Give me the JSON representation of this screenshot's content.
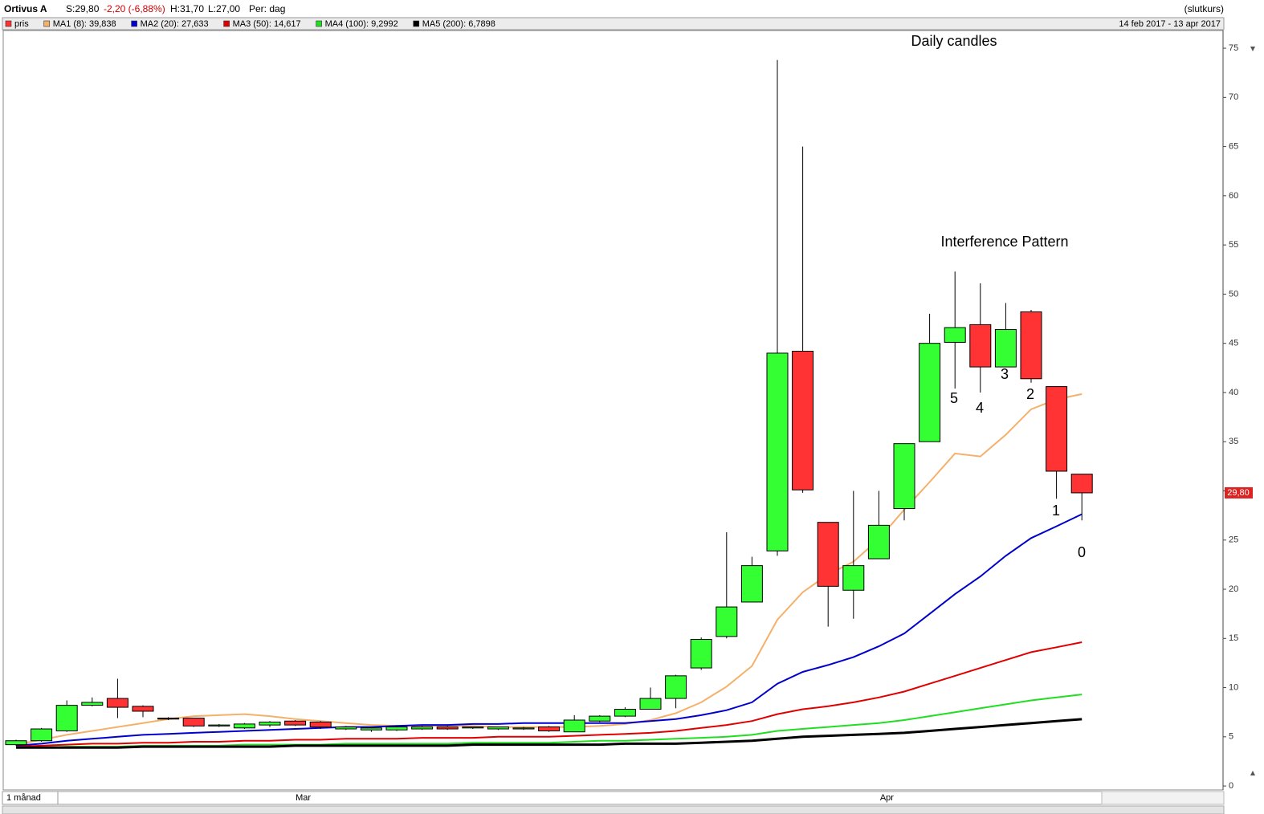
{
  "header": {
    "name": "Ortivus A",
    "close": "S:29,80",
    "change": "-2,20 (-6,88%)",
    "high": "H:31,70",
    "low": "L:27,00",
    "period": "Per: dag",
    "mode": "(slutkurs)",
    "date_range": "14 feb 2017 - 13 apr 2017",
    "range_button": "1 månad"
  },
  "chart_data": {
    "type": "candlestick",
    "annotations": [
      "Daily candles",
      "Interference Pattern"
    ],
    "wave_labels": [
      "5",
      "4",
      "3",
      "2",
      "1",
      "0"
    ],
    "categories": [
      null,
      null,
      null,
      null,
      null,
      null,
      null,
      null,
      null,
      null,
      null,
      "Mar",
      null,
      null,
      null,
      null,
      null,
      null,
      null,
      null,
      null,
      null,
      null,
      null,
      null,
      null,
      null,
      null,
      null,
      null,
      null,
      null,
      null,
      null,
      "Apr",
      null,
      null,
      null,
      null,
      null,
      null,
      null,
      null
    ],
    "ylim": [
      -0.4,
      76.8
    ],
    "yticks": [
      0,
      5,
      10,
      15,
      20,
      25,
      30,
      35,
      40,
      45,
      50,
      55,
      60,
      65,
      70,
      75
    ],
    "price_tag": {
      "value": 29.8,
      "label": "29,80"
    },
    "series": [
      {
        "name": "pris",
        "color": "#ff3333",
        "color_up": "#33ff33",
        "color_down": "#ff3333",
        "open": [
          4.2,
          4.6,
          5.6,
          8.2,
          8.9,
          8.1,
          6.9,
          6.9,
          6.1,
          5.9,
          6.2,
          6.6,
          6.5,
          5.8,
          5.7,
          5.7,
          5.8,
          6.0,
          5.9,
          5.8,
          5.8,
          6.0,
          5.5,
          6.6,
          7.1,
          7.8,
          8.9,
          12.0,
          15.2,
          18.7,
          23.9,
          44.2,
          26.8,
          19.9,
          23.1,
          28.2,
          35.0,
          45.1,
          46.9,
          42.6,
          48.2,
          40.6,
          31.7
        ],
        "high": [
          4.7,
          5.9,
          8.7,
          9.0,
          10.9,
          8.2,
          7.0,
          6.9,
          6.3,
          6.4,
          6.6,
          6.7,
          6.6,
          6.1,
          6.0,
          6.1,
          6.1,
          6.1,
          6.0,
          6.0,
          6.0,
          6.1,
          7.2,
          7.2,
          8.0,
          10.0,
          11.3,
          15.1,
          25.8,
          23.3,
          73.8,
          65.0,
          26.8,
          30.0,
          30.0,
          34.8,
          48.0,
          52.3,
          51.1,
          49.1,
          48.4,
          40.6,
          31.7
        ],
        "low": [
          4.1,
          4.5,
          5.5,
          8.1,
          6.9,
          7.0,
          6.7,
          6.0,
          6.0,
          5.8,
          6.0,
          6.1,
          5.8,
          5.7,
          5.5,
          5.6,
          5.7,
          5.7,
          5.8,
          5.7,
          5.7,
          5.5,
          5.5,
          6.5,
          7.0,
          7.8,
          7.9,
          11.8,
          15.0,
          18.7,
          23.4,
          29.8,
          16.2,
          17.0,
          23.1,
          27.0,
          35.0,
          40.4,
          40.0,
          42.6,
          41.0,
          29.2,
          27.0
        ],
        "close": [
          4.6,
          5.8,
          8.2,
          8.5,
          8.0,
          7.6,
          6.8,
          6.1,
          6.2,
          6.3,
          6.5,
          6.2,
          6.0,
          6.0,
          5.9,
          6.0,
          6.0,
          5.8,
          6.0,
          6.0,
          5.9,
          5.6,
          6.7,
          7.1,
          7.8,
          8.9,
          11.2,
          14.9,
          18.2,
          22.4,
          44.0,
          30.1,
          20.3,
          22.4,
          26.5,
          34.8,
          45.0,
          46.6,
          42.6,
          46.4,
          41.4,
          32.0,
          29.8
        ]
      },
      {
        "name": "MA1 (8): 39,838",
        "color": "#f5b06a",
        "values": [
          4.2,
          4.7,
          5.2,
          5.6,
          6.0,
          6.4,
          6.8,
          7.1,
          7.2,
          7.3,
          7.1,
          6.8,
          6.6,
          6.4,
          6.2,
          6.1,
          6.1,
          6.1,
          6.1,
          6.0,
          6.0,
          6.0,
          6.0,
          6.1,
          6.3,
          6.7,
          7.4,
          8.5,
          10.1,
          12.2,
          16.9,
          19.7,
          21.5,
          22.8,
          25.1,
          28.1,
          30.9,
          33.8,
          33.5,
          35.7,
          38.3,
          39.3,
          39.838
        ]
      },
      {
        "name": "MA2 (20): 27,633",
        "color": "#0000cc",
        "values": [
          4.1,
          4.3,
          4.6,
          4.8,
          5.0,
          5.2,
          5.3,
          5.4,
          5.5,
          5.6,
          5.7,
          5.8,
          5.9,
          6.0,
          6.0,
          6.1,
          6.2,
          6.2,
          6.3,
          6.3,
          6.4,
          6.4,
          6.4,
          6.4,
          6.4,
          6.6,
          6.8,
          7.2,
          7.7,
          8.5,
          10.4,
          11.6,
          12.3,
          13.1,
          14.2,
          15.5,
          17.5,
          19.5,
          21.3,
          23.4,
          25.2,
          26.4,
          27.633
        ]
      },
      {
        "name": "MA3 (50): 14,617",
        "color": "#e00000",
        "values": [
          4.0,
          4.1,
          4.2,
          4.3,
          4.3,
          4.4,
          4.4,
          4.5,
          4.5,
          4.6,
          4.6,
          4.7,
          4.7,
          4.8,
          4.8,
          4.8,
          4.9,
          4.9,
          4.9,
          5.0,
          5.0,
          5.0,
          5.1,
          5.2,
          5.3,
          5.4,
          5.6,
          5.9,
          6.2,
          6.6,
          7.3,
          7.8,
          8.1,
          8.5,
          9.0,
          9.6,
          10.4,
          11.2,
          12.0,
          12.8,
          13.6,
          14.1,
          14.617
        ]
      },
      {
        "name": "MA4 (100): 9,2992",
        "color": "#22dd22",
        "values": [
          3.9,
          3.9,
          4.0,
          4.0,
          4.0,
          4.1,
          4.1,
          4.1,
          4.1,
          4.2,
          4.2,
          4.2,
          4.2,
          4.3,
          4.3,
          4.3,
          4.3,
          4.3,
          4.4,
          4.4,
          4.4,
          4.4,
          4.5,
          4.6,
          4.6,
          4.7,
          4.8,
          4.9,
          5.0,
          5.2,
          5.6,
          5.8,
          6.0,
          6.2,
          6.4,
          6.7,
          7.1,
          7.5,
          7.9,
          8.3,
          8.7,
          9.0,
          9.2992
        ]
      },
      {
        "name": "MA5 (200): 6,7898",
        "color": "#000000",
        "values": [
          3.9,
          3.9,
          3.9,
          3.9,
          3.9,
          4.0,
          4.0,
          4.0,
          4.0,
          4.0,
          4.0,
          4.1,
          4.1,
          4.1,
          4.1,
          4.1,
          4.1,
          4.1,
          4.2,
          4.2,
          4.2,
          4.2,
          4.2,
          4.2,
          4.3,
          4.3,
          4.3,
          4.4,
          4.5,
          4.6,
          4.8,
          5.0,
          5.1,
          5.2,
          5.3,
          5.4,
          5.6,
          5.8,
          6.0,
          6.2,
          6.4,
          6.6,
          6.7898
        ]
      }
    ]
  }
}
